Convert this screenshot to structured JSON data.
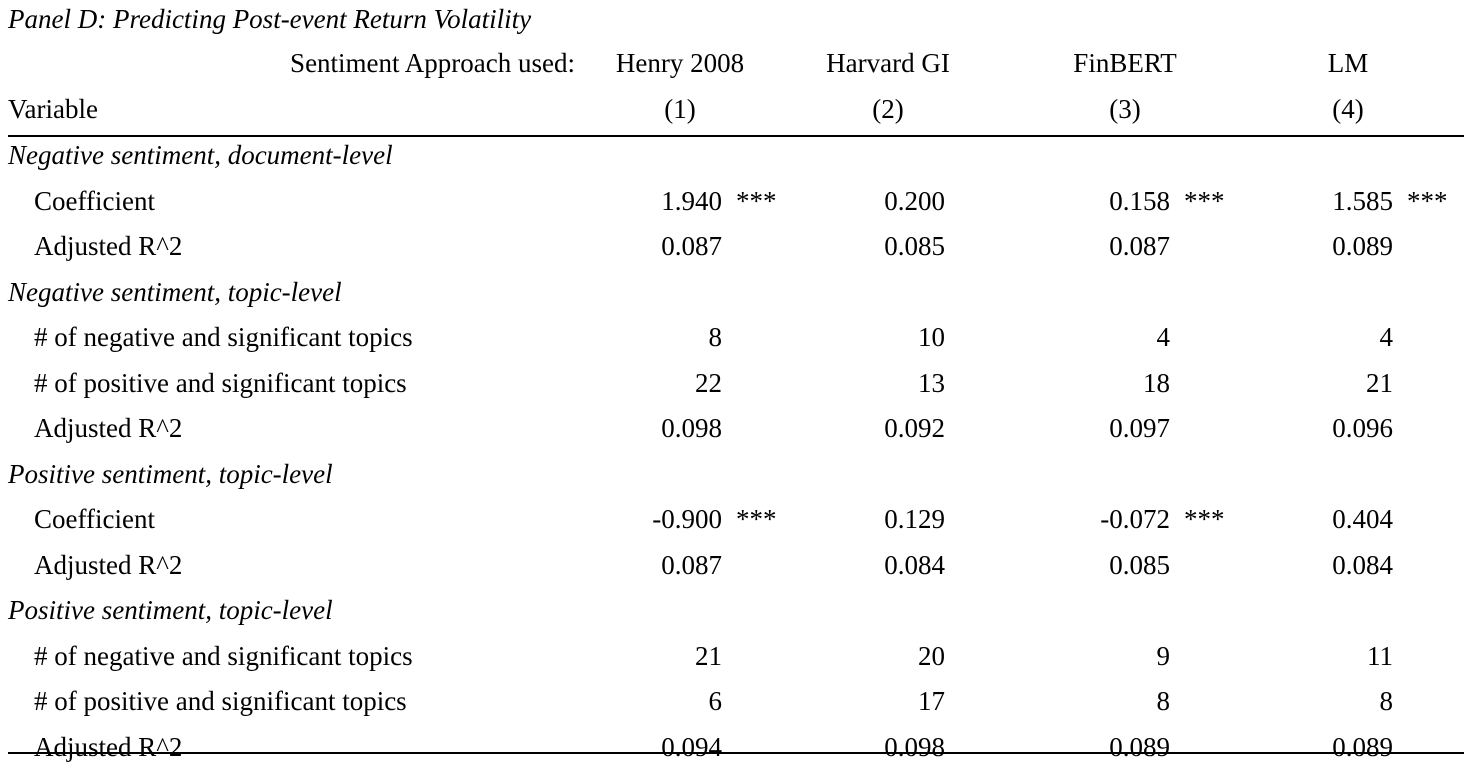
{
  "title": "Panel D: Predicting Post-event Return Volatility",
  "header": {
    "approach_label": "Sentiment Approach used:",
    "variable_label": "Variable",
    "columns": [
      {
        "name": "Henry 2008",
        "num": "(1)"
      },
      {
        "name": "Harvard GI",
        "num": "(2)"
      },
      {
        "name": "FinBERT",
        "num": "(3)"
      },
      {
        "name": "LM",
        "num": "(4)"
      }
    ]
  },
  "rows": [
    {
      "kind": "section",
      "label": "Negative sentiment, document-level"
    },
    {
      "kind": "data",
      "label": "Coefficient",
      "values": [
        "1.940",
        "0.200",
        "0.158",
        "1.585"
      ],
      "stars": [
        "***",
        "",
        "***",
        "***"
      ]
    },
    {
      "kind": "data",
      "label": "Adjusted R^2",
      "values": [
        "0.087",
        "0.085",
        "0.087",
        "0.089"
      ],
      "stars": [
        "",
        "",
        "",
        ""
      ]
    },
    {
      "kind": "section",
      "label": "Negative sentiment, topic-level"
    },
    {
      "kind": "data",
      "label": "# of negative and significant topics",
      "values": [
        "8",
        "10",
        "4",
        "4"
      ],
      "stars": [
        "",
        "",
        "",
        ""
      ]
    },
    {
      "kind": "data",
      "label": "# of positive and significant topics",
      "values": [
        "22",
        "13",
        "18",
        "21"
      ],
      "stars": [
        "",
        "",
        "",
        ""
      ]
    },
    {
      "kind": "data",
      "label": "Adjusted R^2",
      "values": [
        "0.098",
        "0.092",
        "0.097",
        "0.096"
      ],
      "stars": [
        "",
        "",
        "",
        ""
      ]
    },
    {
      "kind": "section",
      "label": "Positive sentiment, topic-level"
    },
    {
      "kind": "data",
      "label": "Coefficient",
      "values": [
        "-0.900",
        "0.129",
        "-0.072",
        "0.404"
      ],
      "stars": [
        "***",
        "",
        "***",
        ""
      ]
    },
    {
      "kind": "data",
      "label": "Adjusted R^2",
      "values": [
        "0.087",
        "0.084",
        "0.085",
        "0.084"
      ],
      "stars": [
        "",
        "",
        "",
        ""
      ]
    },
    {
      "kind": "section",
      "label": "Positive sentiment, topic-level"
    },
    {
      "kind": "data",
      "label": "# of negative and significant topics",
      "values": [
        "21",
        "20",
        "9",
        "11"
      ],
      "stars": [
        "",
        "",
        "",
        ""
      ]
    },
    {
      "kind": "data",
      "label": "# of positive and significant topics",
      "values": [
        "6",
        "17",
        "8",
        "8"
      ],
      "stars": [
        "",
        "",
        "",
        ""
      ]
    },
    {
      "kind": "data",
      "label": "Adjusted R^2",
      "values": [
        "0.094",
        "0.098",
        "0.089",
        "0.089"
      ],
      "stars": [
        "",
        "",
        "",
        ""
      ]
    }
  ]
}
